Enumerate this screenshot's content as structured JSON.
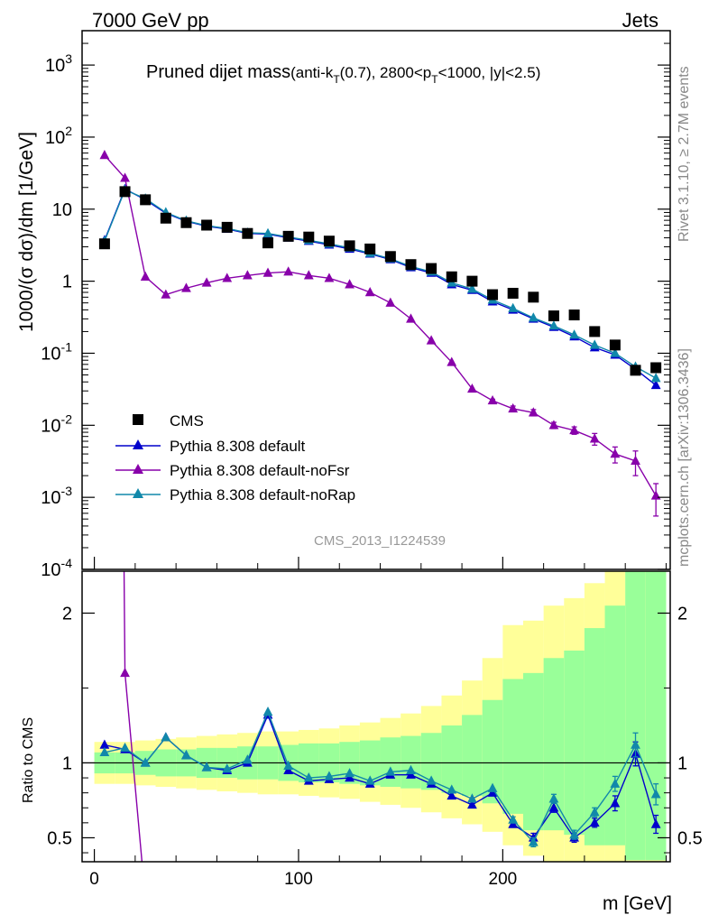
{
  "header": {
    "left": "7000 GeV pp",
    "right": "Jets"
  },
  "side_labels": {
    "rivet": "Rivet 3.1.10, ≥ 2.7M events",
    "mcplots": "mcplots.cern.ch [arXiv:1306.3436]"
  },
  "chart_data": {
    "type": "line",
    "title_main": "Pruned dijet mass",
    "title_sub": "(anti-k",
    "title_sub_T": "T",
    "title_sub_mid": "(0.7), 2800<p",
    "title_sub_T2": "T",
    "title_sub_end": "<1000, |y|<2.5)",
    "watermark": "CMS_2013_I1224539",
    "ylabel_top": "1000/(σ dσ)/dm [1/GeV]",
    "ylabel_bottom": "Ratio to CMS",
    "xlabel": "m [GeV]",
    "top_y_log": true,
    "top_ylim": [
      0.0001,
      3000
    ],
    "bottom_ylim": [
      0.34,
      2.28
    ],
    "xlim": [
      -6,
      282
    ],
    "x_ticks": [
      "0",
      "100",
      "200"
    ],
    "top_y_ticks": [
      "10^3",
      "10^2",
      "10",
      "1",
      "10^-1",
      "10^-2",
      "10^-3",
      "10^-4"
    ],
    "bottom_y_ticks": [
      "0.5",
      "1",
      "2"
    ],
    "legend": [
      "CMS",
      "Pythia 8.308 default",
      "Pythia 8.308 default-noFsr",
      "Pythia 8.308 default-noRap"
    ],
    "x": [
      5,
      15,
      25,
      35,
      45,
      55,
      65,
      75,
      85,
      95,
      105,
      115,
      125,
      135,
      145,
      155,
      165,
      175,
      185,
      195,
      205,
      215,
      225,
      235,
      245,
      255,
      265,
      275
    ],
    "cms": [
      3.3,
      17.5,
      13.5,
      7.5,
      6.5,
      6.0,
      5.6,
      4.6,
      3.4,
      4.2,
      4.1,
      3.6,
      3.1,
      2.8,
      2.2,
      1.7,
      1.5,
      1.15,
      1.0,
      0.65,
      0.68,
      0.6,
      0.33,
      0.34,
      0.2,
      0.13,
      0.058,
      0.063
    ],
    "series": [
      {
        "name": "Pythia 8.308 default",
        "color": "#0000cc",
        "values": [
          3.7,
          19.0,
          13.5,
          8.8,
          6.8,
          5.8,
          5.3,
          4.6,
          4.5,
          4.0,
          3.6,
          3.2,
          2.8,
          2.4,
          2.0,
          1.55,
          1.3,
          0.9,
          0.75,
          0.52,
          0.4,
          0.3,
          0.23,
          0.17,
          0.12,
          0.095,
          0.06,
          0.036
        ],
        "ratio": [
          1.12,
          1.09,
          1.0,
          1.17,
          1.05,
          0.97,
          0.95,
          1.0,
          1.32,
          0.95,
          0.88,
          0.89,
          0.9,
          0.86,
          0.92,
          0.92,
          0.86,
          0.78,
          0.72,
          0.8,
          0.59,
          0.5,
          0.7,
          0.5,
          0.6,
          0.73,
          1.06,
          0.59
        ],
        "ratio_err": [
          0,
          0,
          0,
          0,
          0,
          0,
          0,
          0,
          0,
          0,
          0,
          0,
          0,
          0,
          0,
          0,
          0,
          0,
          0,
          0,
          0.02,
          0.03,
          0.03,
          0.03,
          0.03,
          0.05,
          0.08,
          0.06
        ]
      },
      {
        "name": "Pythia 8.308 default-noFsr",
        "color": "#8800aa",
        "values": [
          56.0,
          27.0,
          1.15,
          0.65,
          0.8,
          0.95,
          1.1,
          1.2,
          1.3,
          1.35,
          1.2,
          1.1,
          0.9,
          0.7,
          0.5,
          0.3,
          0.15,
          0.075,
          0.032,
          0.022,
          0.017,
          0.015,
          0.01,
          0.0085,
          0.0065,
          0.004,
          0.0032,
          0.00105
        ],
        "value_err": [
          0,
          0,
          0,
          0,
          0,
          0,
          0,
          0,
          0,
          0,
          0,
          0,
          0,
          0,
          0,
          0,
          0,
          0,
          0,
          0.001,
          0.0015,
          0.0015,
          0.001,
          0.001,
          0.0012,
          0.001,
          0.0012,
          0.0005
        ],
        "ratio": [
          17.0,
          1.6,
          0.086
        ]
      },
      {
        "name": "Pythia 8.308 default-noRap",
        "color": "#1188aa",
        "values": [
          3.6,
          18.5,
          14.0,
          9.0,
          6.9,
          5.9,
          5.4,
          4.7,
          4.6,
          4.1,
          3.7,
          3.3,
          2.9,
          2.45,
          2.05,
          1.6,
          1.35,
          0.95,
          0.78,
          0.55,
          0.42,
          0.31,
          0.24,
          0.18,
          0.13,
          0.1,
          0.065,
          0.045
        ],
        "ratio": [
          1.07,
          1.1,
          1.0,
          1.17,
          1.05,
          0.97,
          0.96,
          1.02,
          1.34,
          0.98,
          0.9,
          0.91,
          0.93,
          0.88,
          0.94,
          0.95,
          0.88,
          0.82,
          0.76,
          0.83,
          0.62,
          0.47,
          0.76,
          0.52,
          0.67,
          0.86,
          1.12,
          0.79
        ],
        "ratio_err": [
          0,
          0,
          0,
          0,
          0,
          0,
          0,
          0,
          0,
          0,
          0,
          0,
          0,
          0,
          0,
          0,
          0,
          0,
          0,
          0,
          0.02,
          0.03,
          0.03,
          0.03,
          0.03,
          0.05,
          0.08,
          0.07
        ]
      }
    ],
    "band_inner": {
      "color": "#99ff99",
      "lo": [
        0.93,
        0.93,
        0.92,
        0.91,
        0.91,
        0.9,
        0.9,
        0.89,
        0.89,
        0.88,
        0.87,
        0.87,
        0.86,
        0.85,
        0.84,
        0.83,
        0.82,
        0.8,
        0.78,
        0.73,
        0.66,
        0.55,
        0.55,
        0.52,
        0.45,
        0.45,
        0.35,
        0.35
      ],
      "hi": [
        1.07,
        1.07,
        1.08,
        1.09,
        1.09,
        1.1,
        1.1,
        1.11,
        1.11,
        1.12,
        1.13,
        1.13,
        1.14,
        1.15,
        1.17,
        1.18,
        1.2,
        1.25,
        1.32,
        1.42,
        1.56,
        1.6,
        1.7,
        1.75,
        1.9,
        2.05,
        2.28,
        2.28
      ]
    },
    "band_outer": {
      "color": "#ffff99",
      "lo": [
        0.86,
        0.86,
        0.85,
        0.84,
        0.83,
        0.82,
        0.81,
        0.8,
        0.79,
        0.79,
        0.78,
        0.77,
        0.76,
        0.74,
        0.72,
        0.7,
        0.67,
        0.63,
        0.59,
        0.54,
        0.45,
        0.38,
        0.34,
        0.34,
        0.34,
        0.34,
        0.34,
        0.34
      ],
      "hi": [
        1.14,
        1.14,
        1.15,
        1.16,
        1.17,
        1.18,
        1.19,
        1.2,
        1.21,
        1.21,
        1.22,
        1.23,
        1.25,
        1.27,
        1.3,
        1.33,
        1.38,
        1.45,
        1.55,
        1.7,
        1.92,
        1.95,
        2.05,
        2.1,
        2.2,
        2.28,
        2.28,
        2.28
      ]
    }
  }
}
